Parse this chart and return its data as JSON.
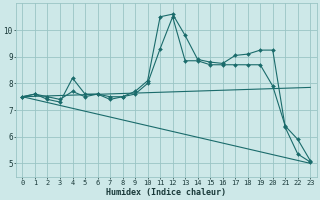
{
  "xlabel": "Humidex (Indice chaleur)",
  "ylabel": "",
  "xlim": [
    -0.5,
    23.5
  ],
  "ylim": [
    4.5,
    11.0
  ],
  "yticks": [
    5,
    6,
    7,
    8,
    9,
    10
  ],
  "xticks": [
    0,
    1,
    2,
    3,
    4,
    5,
    6,
    7,
    8,
    9,
    10,
    11,
    12,
    13,
    14,
    15,
    16,
    17,
    18,
    19,
    20,
    21,
    22,
    23
  ],
  "bg_color": "#cde8e8",
  "grid_color": "#9ac5c5",
  "line_color": "#1a6b6b",
  "lines": [
    {
      "x": [
        0,
        1,
        2,
        3,
        4,
        5,
        6,
        7,
        8,
        9,
        10,
        11,
        12,
        13,
        14,
        15,
        16,
        17,
        18,
        19,
        20,
        21,
        22,
        23
      ],
      "y": [
        7.5,
        7.6,
        7.4,
        7.3,
        8.2,
        7.6,
        7.6,
        7.5,
        7.5,
        7.7,
        8.1,
        10.5,
        10.6,
        9.8,
        8.9,
        8.8,
        8.75,
        9.05,
        9.1,
        9.25,
        9.25,
        6.35,
        5.35,
        5.05
      ],
      "markers": true
    },
    {
      "x": [
        0,
        1,
        2,
        3,
        4,
        5,
        6,
        7,
        8,
        9,
        10,
        11,
        12,
        13,
        14,
        15,
        16,
        17,
        18,
        19,
        20,
        21,
        22,
        23
      ],
      "y": [
        7.5,
        7.6,
        7.5,
        7.4,
        7.7,
        7.5,
        7.6,
        7.4,
        7.5,
        7.6,
        8.0,
        9.3,
        10.5,
        8.85,
        8.85,
        8.7,
        8.7,
        8.7,
        8.7,
        8.7,
        7.9,
        6.4,
        5.9,
        5.1
      ],
      "markers": true
    },
    {
      "x": [
        0,
        23
      ],
      "y": [
        7.5,
        7.85
      ],
      "markers": false
    },
    {
      "x": [
        0,
        23
      ],
      "y": [
        7.5,
        5.0
      ],
      "markers": false
    }
  ]
}
